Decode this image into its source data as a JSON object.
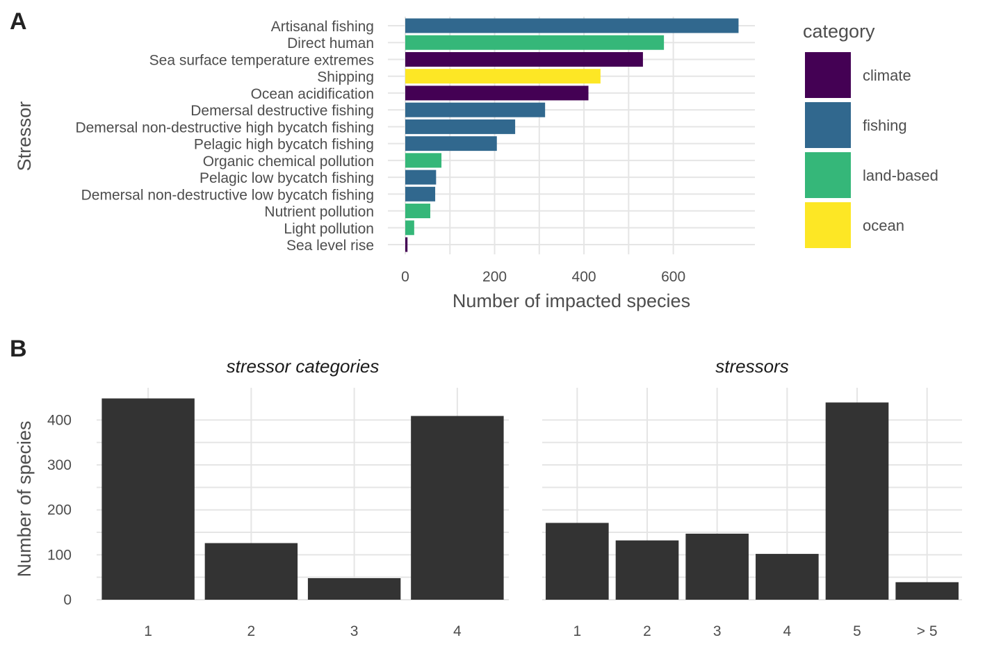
{
  "panels": {
    "a_letter": "A",
    "b_letter": "B"
  },
  "chart_data": [
    {
      "type": "bar",
      "orientation": "horizontal",
      "panel": "A",
      "categories": [
        "Artisanal fishing",
        "Direct human",
        "Sea surface temperature extremes",
        "Shipping",
        "Ocean acidification",
        "Demersal destructive fishing",
        "Demersal non-destructive high bycatch fishing",
        "Pelagic high bycatch fishing",
        "Organic chemical pollution",
        "Pelagic low bycatch fishing",
        "Demersal non-destructive low bycatch fishing",
        "Nutrient pollution",
        "Light pollution",
        "Sea level rise"
      ],
      "values": [
        746,
        579,
        532,
        437,
        410,
        313,
        246,
        205,
        81,
        69,
        67,
        56,
        20,
        5
      ],
      "bar_category": [
        "fishing",
        "land-based",
        "climate",
        "ocean",
        "climate",
        "fishing",
        "fishing",
        "fishing",
        "land-based",
        "fishing",
        "fishing",
        "land-based",
        "land-based",
        "climate"
      ],
      "xlabel": "Number of impacted species",
      "ylabel": "Stressor",
      "xlim": [
        0,
        780
      ],
      "xticks": [
        0,
        200,
        400,
        600
      ],
      "grid": true,
      "legend": {
        "title": "category",
        "position": "right",
        "entries": [
          {
            "label": "climate",
            "color": "#440154"
          },
          {
            "label": "fishing",
            "color": "#31688e"
          },
          {
            "label": "land-based",
            "color": "#35b779"
          },
          {
            "label": "ocean",
            "color": "#fde725"
          }
        ]
      }
    },
    {
      "type": "bar",
      "panel": "B",
      "title": "stressor categories",
      "categories": [
        "1",
        "2",
        "3",
        "4"
      ],
      "values": [
        448,
        126,
        48,
        409
      ],
      "ylabel": "Number of species",
      "ylim": [
        0,
        460
      ],
      "yticks": [
        0,
        100,
        200,
        300,
        400
      ],
      "bar_color": "#333333",
      "grid": true
    },
    {
      "type": "bar",
      "panel": "B",
      "title": "stressors",
      "categories": [
        "1",
        "2",
        "3",
        "4",
        "5",
        "> 5"
      ],
      "values": [
        171,
        132,
        147,
        102,
        439,
        39
      ],
      "ylim": [
        0,
        460
      ],
      "bar_color": "#333333",
      "grid": true
    }
  ]
}
